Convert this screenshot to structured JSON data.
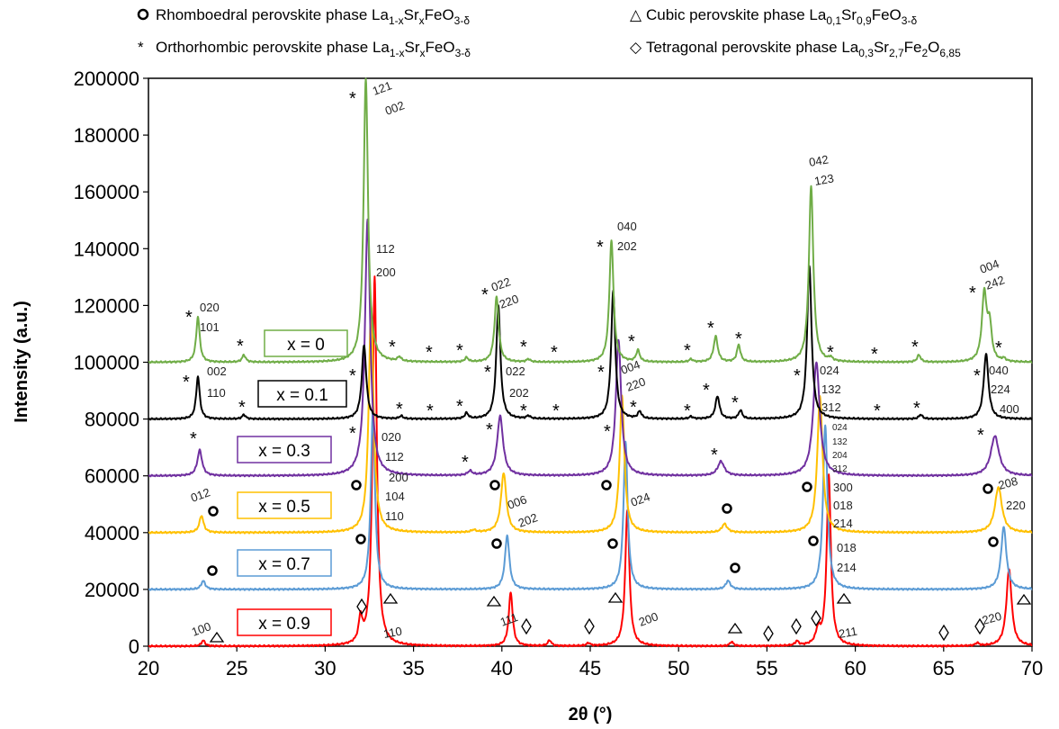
{
  "chart_data": {
    "type": "line",
    "xlabel": "2θ (°)",
    "ylabel": "Intensity (a.u.)",
    "xlim": [
      20,
      70
    ],
    "ylim": [
      0,
      200000
    ],
    "x_ticks": [
      20,
      25,
      30,
      35,
      40,
      45,
      50,
      55,
      60,
      65,
      70
    ],
    "y_ticks": [
      0,
      20000,
      40000,
      60000,
      80000,
      100000,
      120000,
      140000,
      160000,
      180000,
      200000
    ],
    "grid": false,
    "legend": {
      "placement": "top",
      "entries": [
        {
          "symbol": "○",
          "pre": "Rhomboedral perovskite phase La",
          "sub1": "1-x",
          "mid": "Sr",
          "sub2": "x",
          "post": "FeO",
          "sub3": "3-δ",
          "post2": ""
        },
        {
          "symbol": "△",
          "pre": "Cubic perovskite phase La",
          "sub1": "0,1",
          "mid": "Sr",
          "sub2": "0,9",
          "post": "FeO",
          "sub3": "3-δ",
          "post2": ""
        },
        {
          "symbol": "*",
          "pre": "Orthorhombic perovskite phase La",
          "sub1": "1-x",
          "mid": "Sr",
          "sub2": "x",
          "post": "FeO",
          "sub3": "3-δ",
          "post2": ""
        },
        {
          "symbol": "◇",
          "pre": "Tetragonal perovskite phase La",
          "sub1": "0,3",
          "mid": "Sr",
          "sub2": "2,7",
          "post": "Fe",
          "sub3": "2",
          "post2": "O",
          "sub4": "6,85"
        }
      ]
    },
    "series": [
      {
        "name": "x = 0",
        "color": "#70ad47",
        "baseline": 100000,
        "peaks": [
          [
            22.8,
            16000,
            0.12
          ],
          [
            25.4,
            2500,
            0.12
          ],
          [
            34.2,
            1500,
            0.12
          ],
          [
            38.0,
            1500,
            0.12
          ],
          [
            39.7,
            23000,
            0.14
          ],
          [
            41.5,
            1000,
            0.12
          ],
          [
            46.2,
            43000,
            0.14
          ],
          [
            47.7,
            4000,
            0.12
          ],
          [
            50.7,
            1000,
            0.12
          ],
          [
            52.1,
            9000,
            0.14
          ],
          [
            53.4,
            6000,
            0.12
          ],
          [
            57.5,
            62000,
            0.15
          ],
          [
            58.6,
            1200,
            0.12
          ],
          [
            63.6,
            2500,
            0.12
          ],
          [
            67.3,
            24000,
            0.16
          ],
          [
            67.6,
            12000,
            0.14
          ],
          [
            68.4,
            1000,
            0.12
          ],
          [
            32.3,
            100000,
            0.15
          ]
        ]
      },
      {
        "name": "x = 0.1",
        "color": "#000000",
        "baseline": 80000,
        "peaks": [
          [
            22.8,
            15000,
            0.12
          ],
          [
            25.4,
            1500,
            0.12
          ],
          [
            34.3,
            1000,
            0.12
          ],
          [
            38.0,
            2000,
            0.12
          ],
          [
            39.8,
            40000,
            0.14
          ],
          [
            41.5,
            1000,
            0.12
          ],
          [
            46.3,
            45000,
            0.14
          ],
          [
            47.8,
            2500,
            0.12
          ],
          [
            50.7,
            800,
            0.12
          ],
          [
            52.2,
            8000,
            0.14
          ],
          [
            53.5,
            3000,
            0.12
          ],
          [
            57.4,
            54000,
            0.15
          ],
          [
            63.7,
            1500,
            0.12
          ],
          [
            67.4,
            23000,
            0.16
          ],
          [
            32.2,
            26000,
            0.15
          ]
        ]
      },
      {
        "name": "x = 0.3",
        "color": "#7030a0",
        "baseline": 60000,
        "peaks": [
          [
            22.9,
            9000,
            0.16
          ],
          [
            38.2,
            1500,
            0.15
          ],
          [
            39.9,
            21000,
            0.2
          ],
          [
            46.6,
            48000,
            0.18
          ],
          [
            52.4,
            5000,
            0.22
          ],
          [
            57.8,
            40000,
            0.22
          ],
          [
            67.9,
            14000,
            0.28
          ],
          [
            32.4,
            90000,
            0.18
          ]
        ]
      },
      {
        "name": "x = 0.5",
        "color": "#ffc000",
        "baseline": 40000,
        "peaks": [
          [
            23.0,
            6000,
            0.14
          ],
          [
            38.4,
            800,
            0.15
          ],
          [
            40.1,
            21000,
            0.18
          ],
          [
            46.8,
            48000,
            0.16
          ],
          [
            52.6,
            3000,
            0.18
          ],
          [
            58.0,
            48000,
            0.18
          ],
          [
            68.1,
            16000,
            0.24
          ],
          [
            32.6,
            80000,
            0.16
          ]
        ]
      },
      {
        "name": "x = 0.7",
        "color": "#5b9bd5",
        "baseline": 20000,
        "peaks": [
          [
            23.1,
            3000,
            0.14
          ],
          [
            40.3,
            19000,
            0.15
          ],
          [
            47.0,
            52000,
            0.14
          ],
          [
            52.8,
            3000,
            0.16
          ],
          [
            58.3,
            58000,
            0.15
          ],
          [
            68.4,
            22000,
            0.18
          ],
          [
            32.7,
            63000,
            0.14
          ]
        ]
      },
      {
        "name": "x = 0.9",
        "color": "#ff0000",
        "baseline": 0,
        "peaks": [
          [
            23.1,
            2000,
            0.12
          ],
          [
            32.0,
            8500,
            0.12
          ],
          [
            32.8,
            130000,
            0.14
          ],
          [
            40.5,
            19000,
            0.13
          ],
          [
            42.7,
            2000,
            0.12
          ],
          [
            44.9,
            1000,
            0.12
          ],
          [
            47.1,
            48000,
            0.14
          ],
          [
            53.0,
            1500,
            0.12
          ],
          [
            56.7,
            1500,
            0.12
          ],
          [
            57.9,
            5000,
            0.16
          ],
          [
            58.5,
            60000,
            0.14
          ],
          [
            66.9,
            1000,
            0.12
          ],
          [
            68.7,
            27000,
            0.18
          ]
        ]
      }
    ]
  },
  "sample_labels": [
    "x = 0",
    "x = 0.1",
    "x = 0.3",
    "x = 0.5",
    "x = 0.7",
    "x = 0.9"
  ],
  "annotations": {
    "x0": [
      "020",
      "101",
      "121",
      "002",
      "022",
      "220",
      "040",
      "202",
      "042",
      "123",
      "004",
      "242"
    ],
    "x01": [
      "002",
      "110",
      "112",
      "200",
      "022",
      "202",
      "004",
      "220",
      "024",
      "132",
      "312",
      "040",
      "224",
      "400"
    ],
    "x03": [
      "020",
      "112",
      "200",
      "024",
      "132",
      "204",
      "312"
    ],
    "x05": [
      "012",
      "104",
      "110",
      "006",
      "202",
      "024",
      "300",
      "018",
      "214",
      "208",
      "220"
    ],
    "x07": [
      "018",
      "214"
    ],
    "x09": [
      "100",
      "110",
      "111",
      "200",
      "211",
      "220"
    ]
  }
}
